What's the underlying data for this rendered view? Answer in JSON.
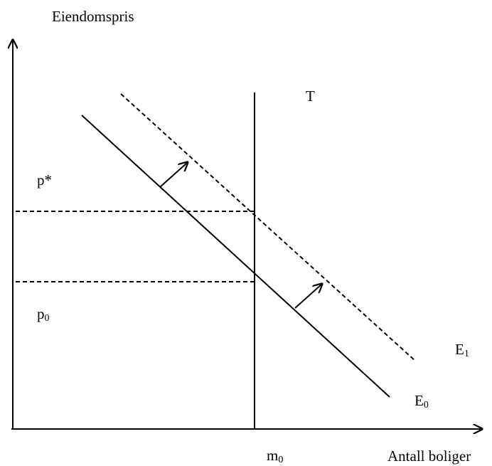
{
  "axes": {
    "y_label": "Eiendomspris",
    "x_label": "Antall boliger"
  },
  "labels": {
    "supply": "T",
    "p_star": "p*",
    "p0": {
      "base": "p",
      "sub": "0"
    },
    "m0": {
      "base": "m",
      "sub": "0"
    },
    "e1": {
      "base": "E",
      "sub": "1"
    },
    "e0": {
      "base": "E",
      "sub": "0"
    }
  }
}
